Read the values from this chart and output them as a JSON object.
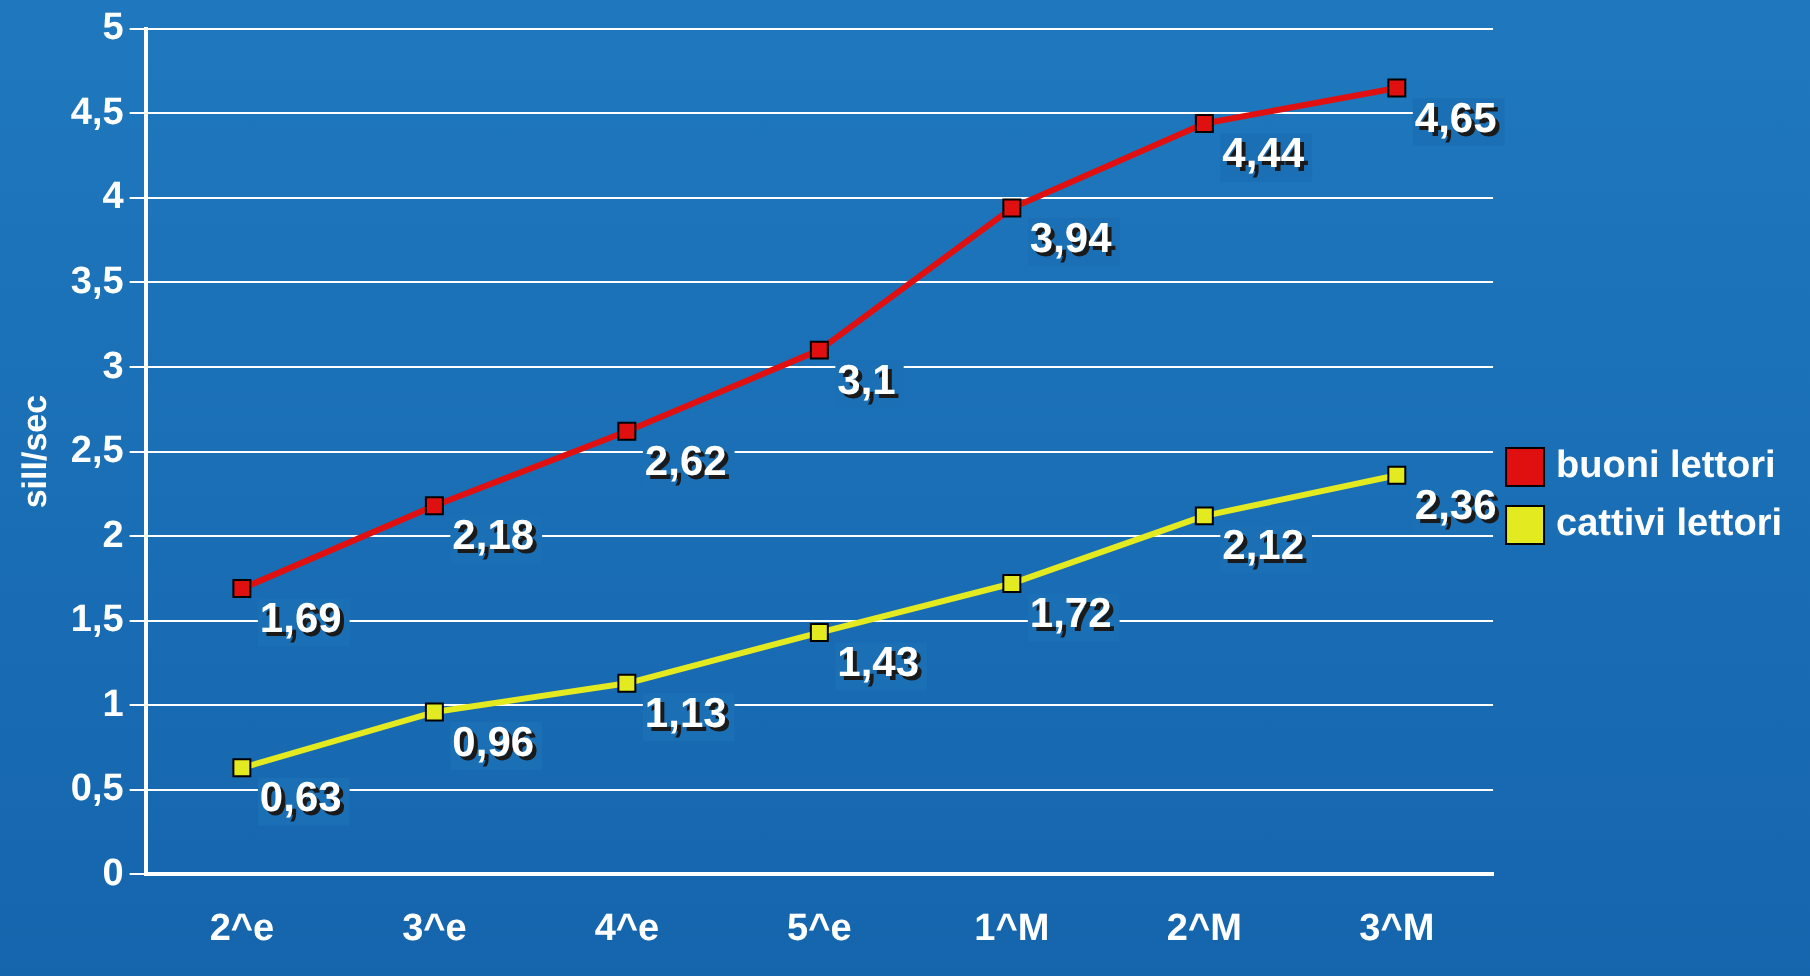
{
  "chart_data": {
    "type": "line",
    "ylabel": "sill/sec",
    "categories": [
      "2^e",
      "3^e",
      "4^e",
      "5^e",
      "1^M",
      "2^M",
      "3^M"
    ],
    "series": [
      {
        "name": "buoni lettori",
        "color": "#e01010",
        "values": [
          1.69,
          2.18,
          2.62,
          3.1,
          3.94,
          4.44,
          4.65
        ],
        "value_labels": [
          "1,69",
          "2,18",
          "2,62",
          "3,1",
          "3,94",
          "4,44",
          "4,65"
        ]
      },
      {
        "name": "cattivi lettori",
        "color": "#e4ea20",
        "values": [
          0.63,
          0.96,
          1.13,
          1.43,
          1.72,
          2.12,
          2.36
        ],
        "value_labels": [
          "0,63",
          "0,96",
          "1,13",
          "1,43",
          "1,72",
          "2,12",
          "2,36"
        ]
      }
    ],
    "ylim": [
      0,
      5
    ],
    "yticks": [
      0,
      {
        "value": 0.5,
        "label": "0,5"
      },
      1,
      {
        "value": 1.5,
        "label": "1,5"
      },
      2,
      {
        "value": 2.5,
        "label": "2,5"
      },
      3,
      {
        "value": 3.5,
        "label": "3,5"
      },
      4,
      {
        "value": 4.5,
        "label": "4,5"
      },
      5
    ],
    "grid": "y",
    "legend": "right",
    "marker": "square",
    "line_style": "solid"
  }
}
